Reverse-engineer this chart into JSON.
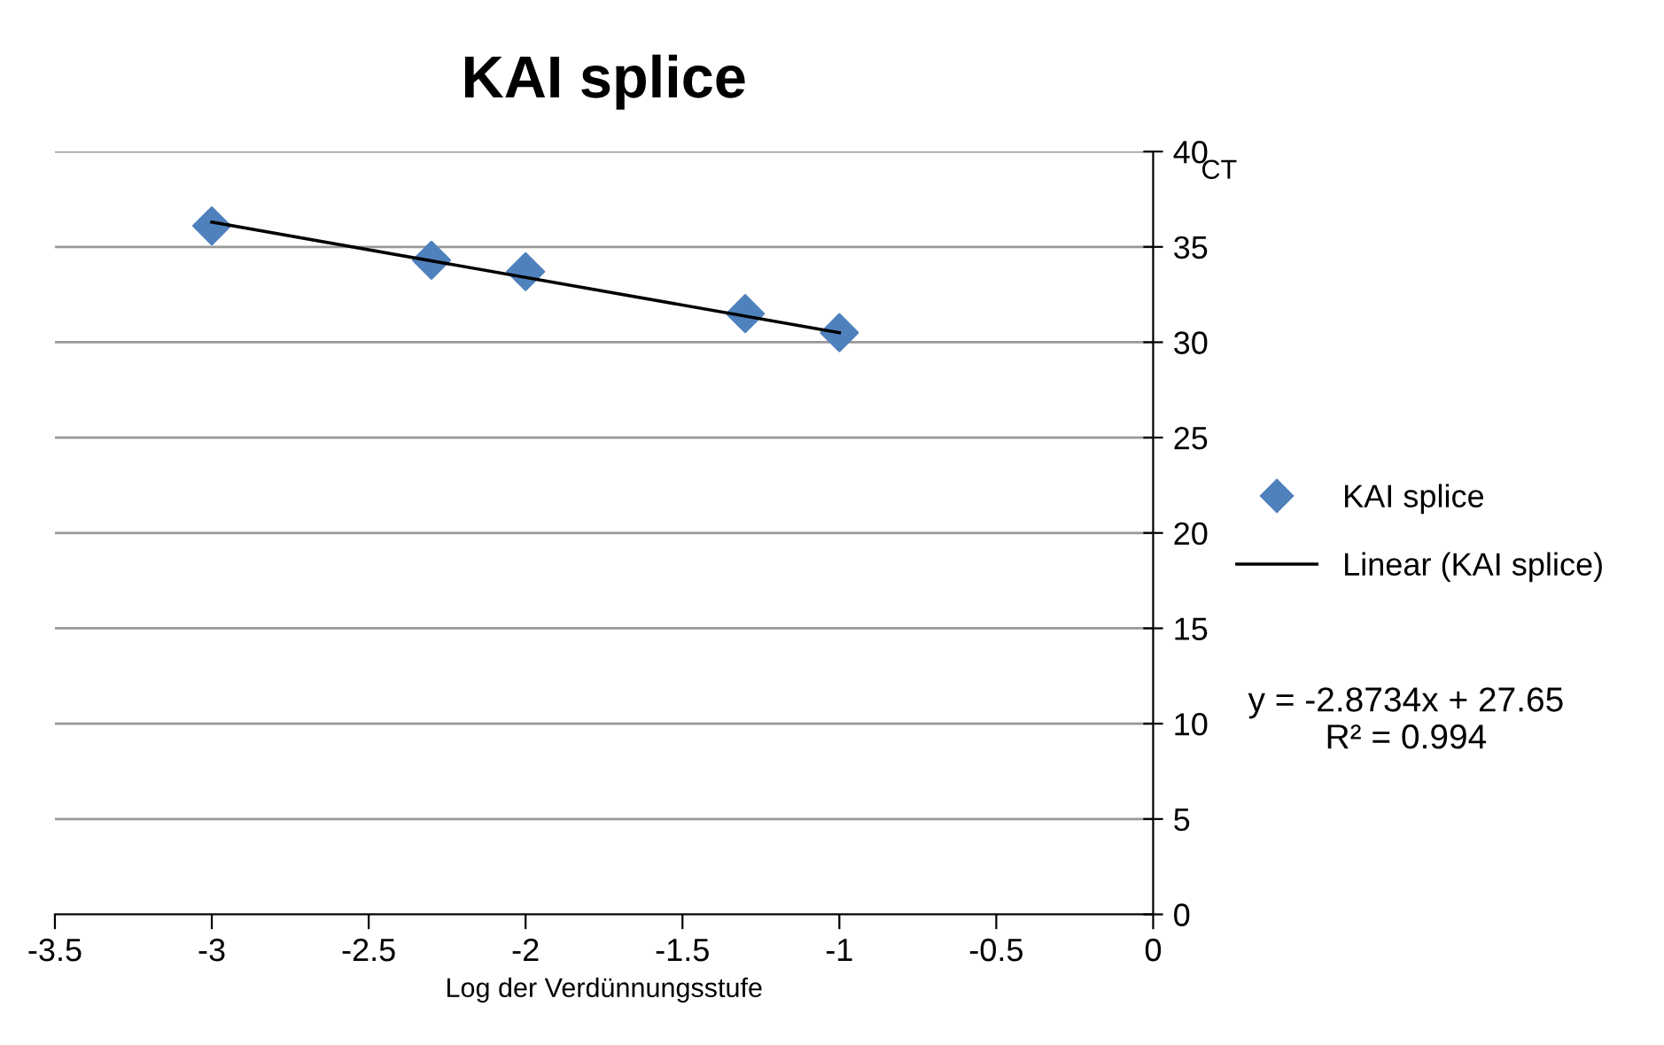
{
  "chart_data": {
    "type": "scatter",
    "title": "KAI splice",
    "xlabel": "Log der Verdünnungsstufe",
    "ylabel": "CT",
    "series": [
      {
        "name": "KAI splice",
        "color": "#4f81bd",
        "marker": "diamond",
        "x": [
          -3,
          -2.3,
          -2,
          -1.3,
          -1
        ],
        "values": [
          36.1,
          34.3,
          33.7,
          31.5,
          30.5
        ]
      },
      {
        "name": "Linear (KAI splice)",
        "type": "line",
        "color": "#000000",
        "line_style": "solid",
        "x": [
          -3,
          -1
        ],
        "values": [
          36.3,
          30.5
        ]
      }
    ],
    "annotations": [
      "y = -2.8734x + 27.65\nR² = 0.994"
    ],
    "xlim": [
      -3.5,
      0
    ],
    "xticks": [
      -3.5,
      -3,
      -2.5,
      -2,
      -1.5,
      -1,
      -0.5,
      0
    ],
    "ylim": [
      0,
      40
    ],
    "yticks": [
      0,
      5,
      10,
      15,
      20,
      25,
      30,
      35,
      40
    ],
    "grid": "y",
    "legend": "right"
  }
}
